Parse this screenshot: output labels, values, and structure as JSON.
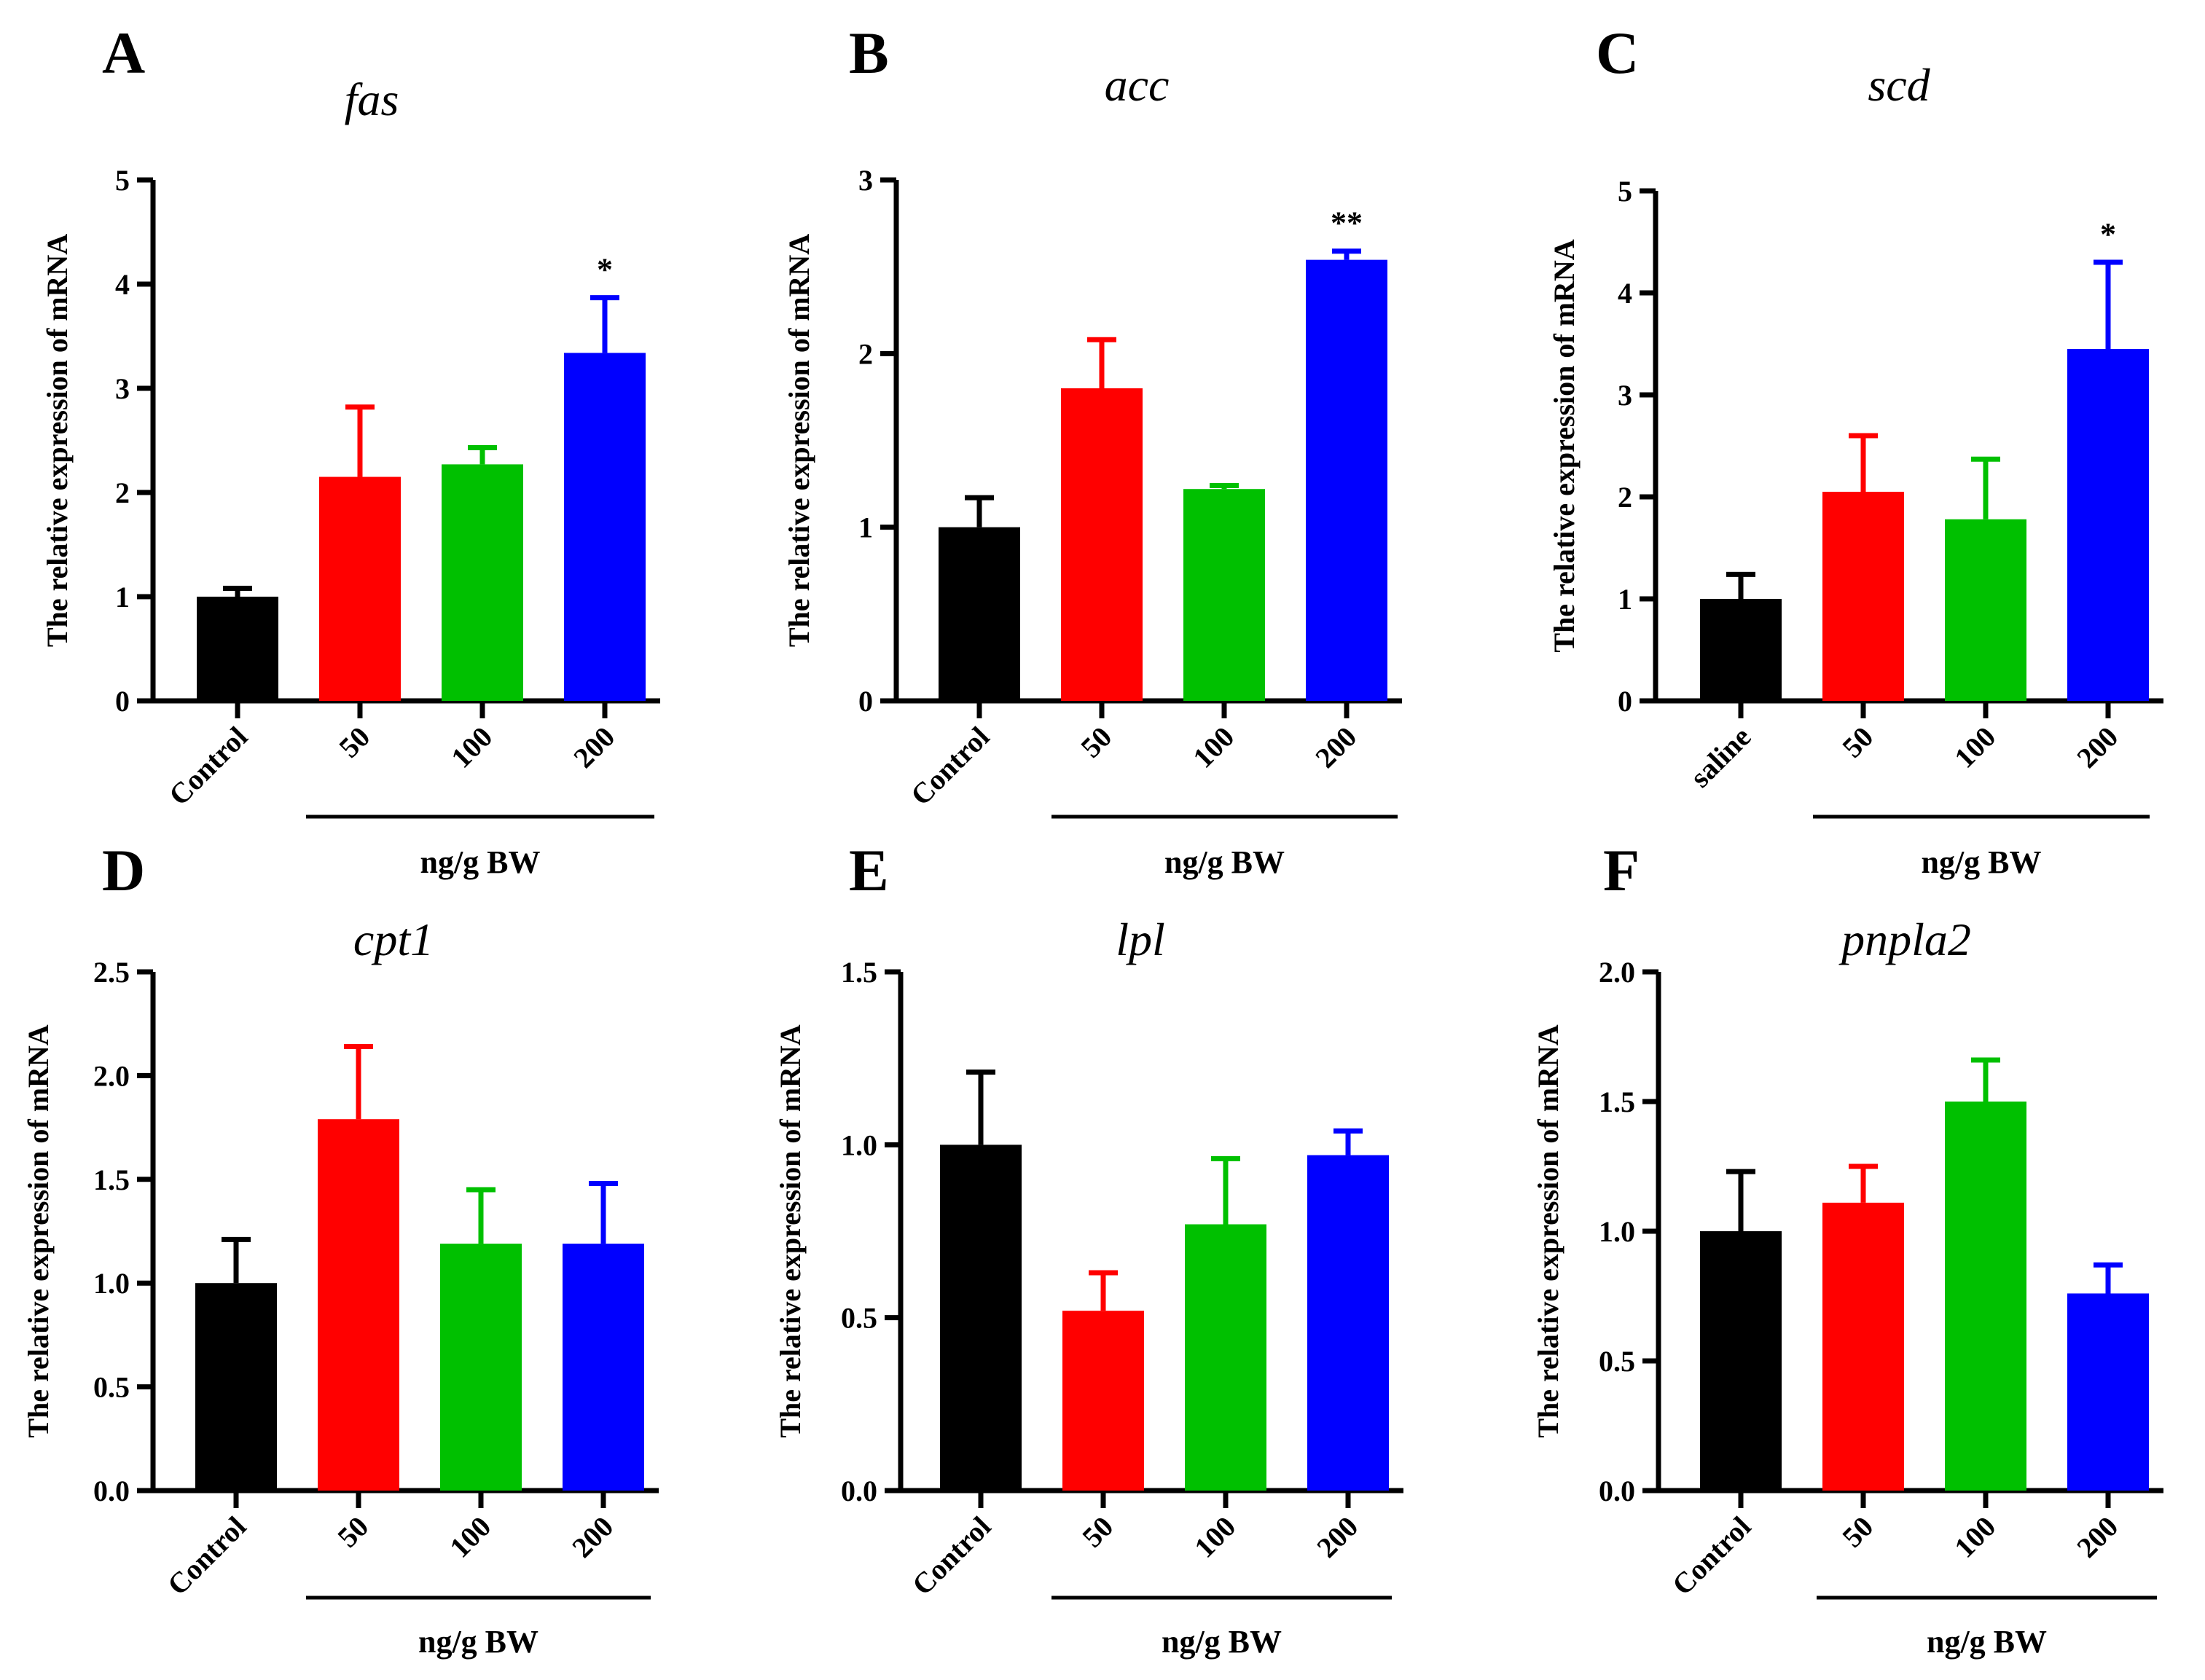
{
  "chart_data": [
    {
      "type": "bar",
      "panel": "A",
      "title": "fas",
      "ylabel": "The relative expression of mRNA",
      "xlabel": "ng/g BW",
      "categories": [
        "Control",
        "50",
        "100",
        "200"
      ],
      "values": [
        1.0,
        2.15,
        2.27,
        3.34
      ],
      "errors": [
        0.08,
        0.67,
        0.16,
        0.53
      ],
      "colors": [
        "#000000",
        "#ff0000",
        "#00c000",
        "#0000ff"
      ],
      "significance": [
        "",
        "",
        "",
        "*"
      ],
      "ylim": [
        0,
        5
      ],
      "yticks": [
        "0",
        "1",
        "2",
        "3",
        "4",
        "5"
      ],
      "ytick_values": [
        0,
        1,
        2,
        3,
        4,
        5
      ]
    },
    {
      "type": "bar",
      "panel": "B",
      "title": "acc",
      "ylabel": "The relative expression of mRNA",
      "xlabel": "ng/g BW",
      "categories": [
        "Control",
        "50",
        "100",
        "200"
      ],
      "values": [
        1.0,
        1.8,
        1.22,
        2.54
      ],
      "errors": [
        0.17,
        0.28,
        0.02,
        0.05
      ],
      "colors": [
        "#000000",
        "#ff0000",
        "#00c000",
        "#0000ff"
      ],
      "significance": [
        "",
        "",
        "",
        "**"
      ],
      "ylim": [
        0,
        3
      ],
      "yticks": [
        "0",
        "1",
        "2",
        "3"
      ],
      "ytick_values": [
        0,
        1,
        2,
        3
      ]
    },
    {
      "type": "bar",
      "panel": "C",
      "title": "scd",
      "ylabel": "The relative expression of mRNA",
      "xlabel": "ng/g BW",
      "categories": [
        "saline",
        "50",
        "100",
        "200"
      ],
      "values": [
        1.0,
        2.05,
        1.78,
        3.45
      ],
      "errors": [
        0.24,
        0.55,
        0.59,
        0.85
      ],
      "colors": [
        "#000000",
        "#ff0000",
        "#00c000",
        "#0000ff"
      ],
      "significance": [
        "",
        "",
        "",
        "*"
      ],
      "ylim": [
        0,
        5
      ],
      "yticks": [
        "0",
        "1",
        "2",
        "3",
        "4",
        "5"
      ],
      "ytick_values": [
        0,
        1,
        2,
        3,
        4,
        5
      ]
    },
    {
      "type": "bar",
      "panel": "D",
      "title": "cpt1",
      "ylabel": "The relative expression of mRNA",
      "xlabel": "ng/g BW",
      "categories": [
        "Control",
        "50",
        "100",
        "200"
      ],
      "values": [
        1.0,
        1.79,
        1.19,
        1.19
      ],
      "errors": [
        0.21,
        0.35,
        0.26,
        0.29
      ],
      "colors": [
        "#000000",
        "#ff0000",
        "#00c000",
        "#0000ff"
      ],
      "significance": [
        "",
        "",
        "",
        ""
      ],
      "ylim": [
        0,
        2.5
      ],
      "yticks": [
        "0.0",
        "0.5",
        "1.0",
        "1.5",
        "2.0",
        "2.5"
      ],
      "ytick_values": [
        0,
        0.5,
        1.0,
        1.5,
        2.0,
        2.5
      ]
    },
    {
      "type": "bar",
      "panel": "E",
      "title": "lpl",
      "ylabel": "The relative expression of mRNA",
      "xlabel": "ng/g BW",
      "categories": [
        "Control",
        "50",
        "100",
        "200"
      ],
      "values": [
        1.0,
        0.52,
        0.77,
        0.97
      ],
      "errors": [
        0.21,
        0.11,
        0.19,
        0.07
      ],
      "colors": [
        "#000000",
        "#ff0000",
        "#00c000",
        "#0000ff"
      ],
      "significance": [
        "",
        "",
        "",
        ""
      ],
      "ylim": [
        0,
        1.5
      ],
      "yticks": [
        "0.0",
        "0.5",
        "1.0",
        "1.5"
      ],
      "ytick_values": [
        0,
        0.5,
        1.0,
        1.5
      ]
    },
    {
      "type": "bar",
      "panel": "F",
      "title": "pnpla2",
      "ylabel": "The relative expression of mRNA",
      "xlabel": "ng/g BW",
      "categories": [
        "Control",
        "50",
        "100",
        "200"
      ],
      "values": [
        1.0,
        1.11,
        1.5,
        0.76
      ],
      "errors": [
        0.23,
        0.14,
        0.16,
        0.11
      ],
      "colors": [
        "#000000",
        "#ff0000",
        "#00c000",
        "#0000ff"
      ],
      "significance": [
        "",
        "",
        "",
        ""
      ],
      "ylim": [
        0,
        2.0
      ],
      "yticks": [
        "0.0",
        "0.5",
        "1.0",
        "1.5",
        "2.0"
      ],
      "ytick_values": [
        0,
        0.5,
        1.0,
        1.5,
        2.0
      ]
    }
  ]
}
